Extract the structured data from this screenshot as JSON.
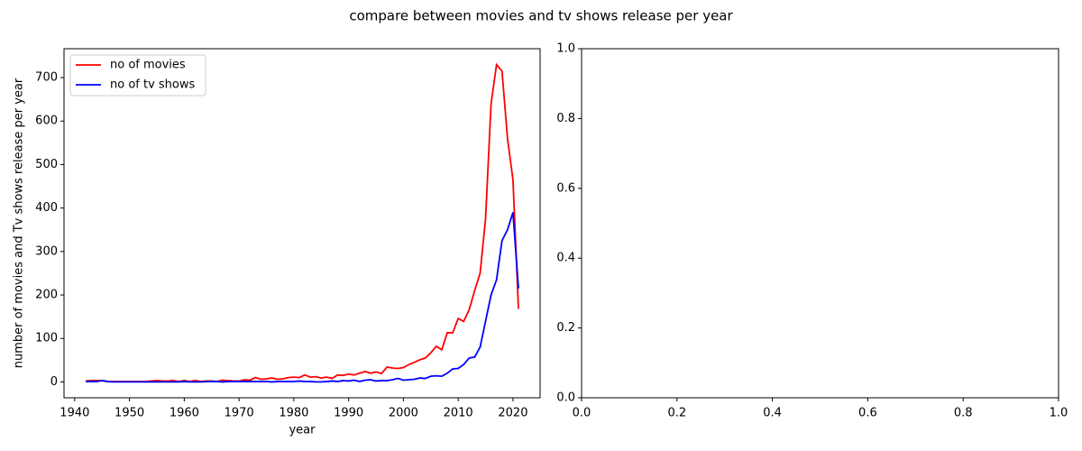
{
  "title": "compare between movies and tv shows release per year",
  "chart_data": [
    {
      "type": "line",
      "x_label": "year",
      "y_label": "number of movies and Tv shows release per year",
      "x": [
        1942,
        1943,
        1944,
        1945,
        1946,
        1947,
        1948,
        1949,
        1950,
        1951,
        1952,
        1953,
        1954,
        1955,
        1956,
        1957,
        1958,
        1959,
        1960,
        1961,
        1962,
        1963,
        1964,
        1965,
        1966,
        1967,
        1968,
        1969,
        1970,
        1971,
        1972,
        1973,
        1974,
        1975,
        1976,
        1977,
        1978,
        1979,
        1980,
        1981,
        1982,
        1983,
        1984,
        1985,
        1986,
        1987,
        1988,
        1989,
        1990,
        1991,
        1992,
        1993,
        1994,
        1995,
        1996,
        1997,
        1998,
        1999,
        2000,
        2001,
        2002,
        2003,
        2004,
        2005,
        2006,
        2007,
        2008,
        2009,
        2010,
        2011,
        2012,
        2013,
        2014,
        2015,
        2016,
        2017,
        2018,
        2019,
        2020,
        2021
      ],
      "series": [
        {
          "name": "no of movies",
          "color": "red",
          "values": [
            2,
            3,
            3,
            3,
            1,
            1,
            1,
            1,
            1,
            1,
            1,
            1,
            2,
            3,
            2,
            2,
            3,
            1,
            3,
            1,
            3,
            1,
            2,
            2,
            1,
            4,
            3,
            2,
            2,
            5,
            4,
            10,
            6,
            7,
            9,
            6,
            7,
            10,
            11,
            10,
            16,
            11,
            12,
            9,
            11,
            8,
            16,
            15,
            18,
            16,
            20,
            24,
            20,
            23,
            19,
            34,
            32,
            31,
            33,
            40,
            45,
            51,
            55,
            67,
            82,
            74,
            113,
            113,
            146,
            139,
            166,
            210,
            250,
            376,
            640,
            730,
            715,
            560,
            465,
            168
          ]
        },
        {
          "name": "no of tv shows",
          "color": "blue",
          "values": [
            1,
            1,
            1,
            3,
            1,
            0,
            0,
            0,
            0,
            0,
            0,
            0,
            0,
            0,
            0,
            0,
            0,
            0,
            1,
            0,
            0,
            0,
            1,
            1,
            1,
            0,
            1,
            1,
            1,
            1,
            1,
            1,
            1,
            1,
            0,
            1,
            1,
            1,
            1,
            2,
            1,
            1,
            0,
            0,
            1,
            2,
            1,
            3,
            2,
            4,
            1,
            4,
            5,
            2,
            3,
            3,
            5,
            8,
            4,
            5,
            6,
            9,
            8,
            13,
            14,
            13,
            20,
            30,
            31,
            40,
            55,
            57,
            80,
            140,
            200,
            235,
            325,
            350,
            390,
            215
          ]
        }
      ],
      "xlim": [
        1938.05,
        2024.95
      ],
      "xticks": [
        1940,
        1950,
        1960,
        1970,
        1980,
        1990,
        2000,
        2010,
        2020
      ],
      "ylim": [
        -36.5,
        766.5
      ],
      "yticks": [
        0,
        100,
        200,
        300,
        400,
        500,
        600,
        700
      ],
      "legend": "upper left"
    },
    {
      "type": "line",
      "xlim": [
        0,
        1
      ],
      "xticks": [
        {
          "value": 0,
          "label": "0.0"
        },
        {
          "value": 0.2,
          "label": "0.2"
        },
        {
          "value": 0.4,
          "label": "0.4"
        },
        {
          "value": 0.6,
          "label": "0.6"
        },
        {
          "value": 0.8,
          "label": "0.8"
        },
        {
          "value": 1,
          "label": "1.0"
        }
      ],
      "ylim": [
        0,
        1
      ],
      "yticks": [
        {
          "value": 0,
          "label": "0.0"
        },
        {
          "value": 0.2,
          "label": "0.2"
        },
        {
          "value": 0.4,
          "label": "0.4"
        },
        {
          "value": 0.6,
          "label": "0.6"
        },
        {
          "value": 0.8,
          "label": "0.8"
        },
        {
          "value": 1,
          "label": "1.0"
        }
      ]
    }
  ]
}
